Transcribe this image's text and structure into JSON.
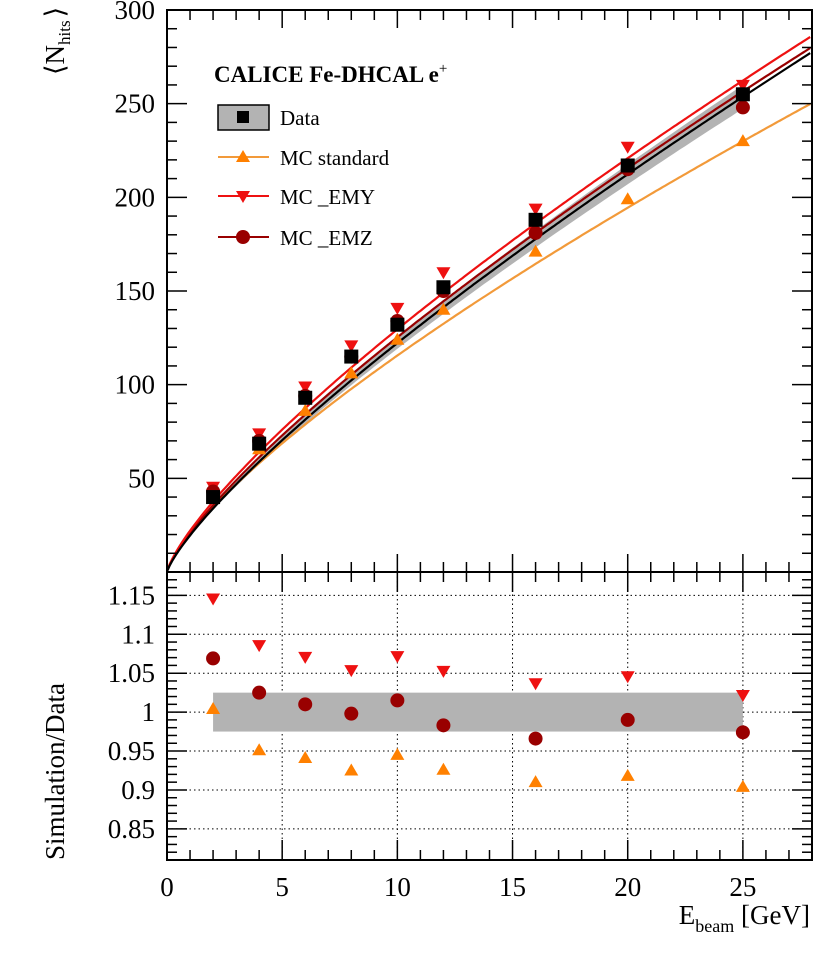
{
  "chart_data": [
    {
      "type": "line",
      "title": "CALICE Fe-DHCAL e",
      "title_superscript": "+",
      "ylabel_main": "⟨N",
      "ylabel_sub": "hits",
      "ylabel_close": "⟩",
      "xlim": [
        0,
        28
      ],
      "ylim": [
        0,
        300
      ],
      "yticks": [
        50,
        100,
        150,
        200,
        250,
        300
      ],
      "ytick_labels": [
        "50",
        "100",
        "150",
        "200",
        "250",
        "300"
      ],
      "legend_position": "top-left",
      "colors": {
        "data": "#000000",
        "band": "#b3b3b3",
        "standard": "#ff8000",
        "standard_line": "#f29a3a",
        "emy": "#ee1111",
        "emz": "#990000"
      },
      "series": [
        {
          "name": "Data",
          "x": [
            2,
            4,
            6,
            8,
            10,
            12,
            16,
            20,
            25
          ],
          "values": [
            40,
            68.5,
            93,
            115,
            132,
            152,
            188,
            217,
            255
          ],
          "marker": "square"
        },
        {
          "name": "MC standard",
          "x": [
            2,
            4,
            6,
            8,
            10,
            12,
            16,
            20,
            25
          ],
          "values": [
            39.5,
            65.5,
            86,
            106,
            124,
            140,
            171,
            199,
            230
          ],
          "marker": "triangle-up"
        },
        {
          "name": "MC _EMY",
          "x": [
            2,
            4,
            6,
            8,
            10,
            12,
            16,
            20,
            25
          ],
          "values": [
            45.5,
            74,
            99,
            121,
            141,
            160,
            194,
            227,
            260
          ],
          "marker": "triangle-down"
        },
        {
          "name": "MC _EMZ",
          "x": [
            2,
            4,
            6,
            8,
            10,
            12,
            16,
            20,
            25
          ],
          "values": [
            43,
            70,
            94,
            115,
            134,
            150,
            181,
            215,
            248
          ],
          "marker": "circle"
        }
      ],
      "fits": {
        "x_end": 28,
        "data": {
          "a": 19.5,
          "b": 0.797
        },
        "standard": {
          "a": 20.5,
          "b": 0.751
        },
        "emy": {
          "a": 22.0,
          "b": 0.77
        },
        "emz": {
          "a": 20.7,
          "b": 0.782
        }
      },
      "data_band_rel_error": 0.025
    },
    {
      "type": "scatter",
      "ylabel": "Simulation/Data",
      "xlabel_main": "E",
      "xlabel_sub": "beam",
      "xlabel_unit": " [GeV]",
      "xlim": [
        0,
        28
      ],
      "ylim": [
        0.81,
        1.18
      ],
      "xticks": [
        0,
        5,
        10,
        15,
        20,
        25
      ],
      "xtick_labels": [
        "0",
        "5",
        "10",
        "15",
        "20",
        "25"
      ],
      "yticks": [
        0.85,
        0.9,
        0.95,
        1.0,
        1.05,
        1.1,
        1.15
      ],
      "ytick_labels": [
        "0.85",
        "0.9",
        "0.95",
        "1",
        "1.05",
        "1.1",
        "1.15"
      ],
      "grid": true,
      "band": {
        "x_start": 2,
        "x_end": 25,
        "y_low": 0.975,
        "y_high": 1.025
      },
      "x": [
        2,
        4,
        6,
        8,
        10,
        12,
        16,
        20,
        25
      ],
      "series": [
        {
          "name": "MC standard",
          "values": [
            1.004,
            0.951,
            0.941,
            0.925,
            0.945,
            0.926,
            0.91,
            0.918,
            0.904
          ],
          "marker": "triangle-up"
        },
        {
          "name": "MC _EMY",
          "values": [
            1.146,
            1.086,
            1.071,
            1.054,
            1.072,
            1.053,
            1.037,
            1.046,
            1.022
          ],
          "marker": "triangle-down"
        },
        {
          "name": "MC _EMZ",
          "values": [
            1.069,
            1.025,
            1.01,
            0.998,
            1.015,
            0.983,
            0.966,
            0.99,
            0.974
          ],
          "marker": "circle"
        }
      ]
    }
  ]
}
